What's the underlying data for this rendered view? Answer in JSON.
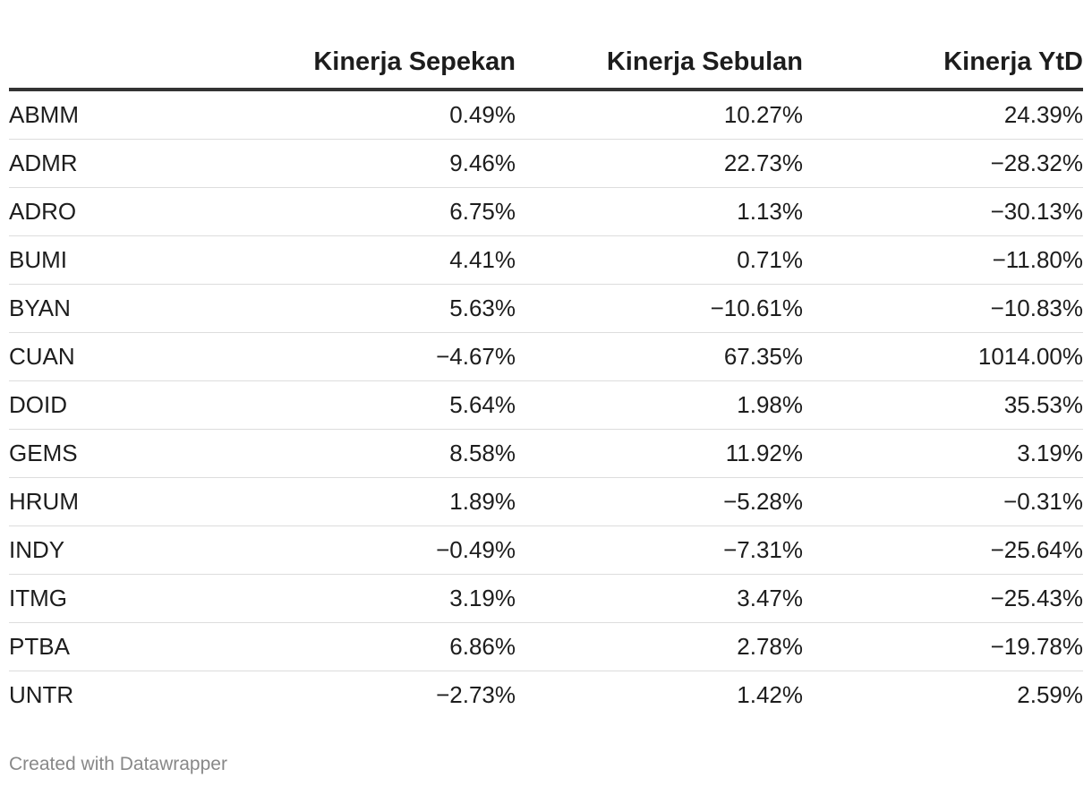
{
  "chart_data": {
    "type": "table",
    "columns": [
      "",
      "Kinerja Sepekan",
      "Kinerja Sebulan",
      "Kinerja YtD"
    ],
    "rows": [
      {
        "ticker": "ABMM",
        "sepekan": "0.49%",
        "sebulan": "10.27%",
        "ytd": "24.39%"
      },
      {
        "ticker": "ADMR",
        "sepekan": "9.46%",
        "sebulan": "22.73%",
        "ytd": "−28.32%"
      },
      {
        "ticker": "ADRO",
        "sepekan": "6.75%",
        "sebulan": "1.13%",
        "ytd": "−30.13%"
      },
      {
        "ticker": "BUMI",
        "sepekan": "4.41%",
        "sebulan": "0.71%",
        "ytd": "−11.80%"
      },
      {
        "ticker": "BYAN",
        "sepekan": "5.63%",
        "sebulan": "−10.61%",
        "ytd": "−10.83%"
      },
      {
        "ticker": "CUAN",
        "sepekan": "−4.67%",
        "sebulan": "67.35%",
        "ytd": "1014.00%"
      },
      {
        "ticker": "DOID",
        "sepekan": "5.64%",
        "sebulan": "1.98%",
        "ytd": "35.53%"
      },
      {
        "ticker": "GEMS",
        "sepekan": "8.58%",
        "sebulan": "11.92%",
        "ytd": "3.19%"
      },
      {
        "ticker": "HRUM",
        "sepekan": "1.89%",
        "sebulan": "−5.28%",
        "ytd": "−0.31%"
      },
      {
        "ticker": "INDY",
        "sepekan": "−0.49%",
        "sebulan": "−7.31%",
        "ytd": "−25.64%"
      },
      {
        "ticker": "ITMG",
        "sepekan": "3.19%",
        "sebulan": "3.47%",
        "ytd": "−25.43%"
      },
      {
        "ticker": "PTBA",
        "sepekan": "6.86%",
        "sebulan": "2.78%",
        "ytd": "−19.78%"
      },
      {
        "ticker": "UNTR",
        "sepekan": "−2.73%",
        "sebulan": "1.42%",
        "ytd": "2.59%"
      }
    ],
    "footer": "Created with Datawrapper"
  }
}
